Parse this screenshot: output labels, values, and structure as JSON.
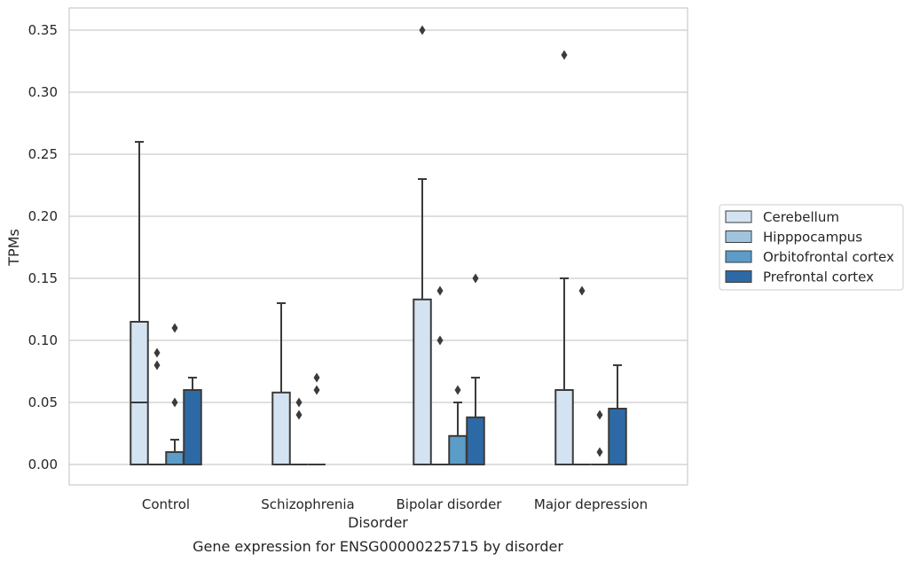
{
  "chart_data": {
    "type": "box",
    "title": "",
    "caption": "Gene expression for ENSG00000225715 by disorder",
    "xlabel": "Disorder",
    "ylabel": "TPMs",
    "ylim": [
      -0.017,
      0.368
    ],
    "yticks": [
      "0.00",
      "0.05",
      "0.10",
      "0.15",
      "0.20",
      "0.25",
      "0.30",
      "0.35"
    ],
    "grid": "horizontal",
    "legend_position": "right",
    "categories": [
      "Control",
      "Schizophrenia",
      "Bipolar disorder",
      "Major depression"
    ],
    "series": [
      {
        "name": "Cerebellum",
        "color": "#d4e3f2",
        "boxes": [
          {
            "q1": 0,
            "median": 0.05,
            "q3": 0.115,
            "whisker_low": 0,
            "whisker_high": 0.26,
            "outliers": []
          },
          {
            "q1": 0,
            "median": 0,
            "q3": 0.058,
            "whisker_low": 0,
            "whisker_high": 0.13,
            "outliers": []
          },
          {
            "q1": 0,
            "median": 0,
            "q3": 0.133,
            "whisker_low": 0,
            "whisker_high": 0.23,
            "outliers": [
              0.35
            ]
          },
          {
            "q1": 0,
            "median": 0,
            "q3": 0.06,
            "whisker_low": 0,
            "whisker_high": 0.15,
            "outliers": [
              0.33
            ]
          }
        ]
      },
      {
        "name": "Hipppocampus",
        "color": "#9fc5de",
        "boxes": [
          {
            "q1": 0,
            "median": 0,
            "q3": 0,
            "whisker_low": 0,
            "whisker_high": 0,
            "outliers": [
              0.08,
              0.09
            ]
          },
          {
            "q1": 0,
            "median": 0,
            "q3": 0,
            "whisker_low": 0,
            "whisker_high": 0,
            "outliers": [
              0.04,
              0.05
            ]
          },
          {
            "q1": 0,
            "median": 0,
            "q3": 0,
            "whisker_low": 0,
            "whisker_high": 0,
            "outliers": [
              0.1,
              0.14
            ]
          },
          {
            "q1": 0,
            "median": 0,
            "q3": 0,
            "whisker_low": 0,
            "whisker_high": 0,
            "outliers": [
              0.14
            ]
          }
        ]
      },
      {
        "name": "Orbitofrontal cortex",
        "color": "#5b9cc8",
        "boxes": [
          {
            "q1": 0,
            "median": 0,
            "q3": 0.01,
            "whisker_low": 0,
            "whisker_high": 0.02,
            "outliers": [
              0.05,
              0.11
            ]
          },
          {
            "q1": 0,
            "median": 0,
            "q3": 0,
            "whisker_low": 0,
            "whisker_high": 0,
            "outliers": [
              0.06,
              0.07
            ]
          },
          {
            "q1": 0,
            "median": 0,
            "q3": 0.023,
            "whisker_low": 0,
            "whisker_high": 0.05,
            "outliers": [
              0.06
            ]
          },
          {
            "q1": 0,
            "median": 0,
            "q3": 0,
            "whisker_low": 0,
            "whisker_high": 0,
            "outliers": [
              0.01,
              0.04
            ]
          }
        ]
      },
      {
        "name": "Prefrontal cortex",
        "color": "#2d6aa5",
        "boxes": [
          {
            "q1": 0,
            "median": 0,
            "q3": 0.06,
            "whisker_low": 0,
            "whisker_high": 0.07,
            "outliers": []
          },
          null,
          {
            "q1": 0,
            "median": 0,
            "q3": 0.038,
            "whisker_low": 0,
            "whisker_high": 0.07,
            "outliers": [
              0.15
            ]
          },
          {
            "q1": 0,
            "median": 0,
            "q3": 0.045,
            "whisker_low": 0,
            "whisker_high": 0.08,
            "outliers": []
          }
        ]
      }
    ]
  }
}
